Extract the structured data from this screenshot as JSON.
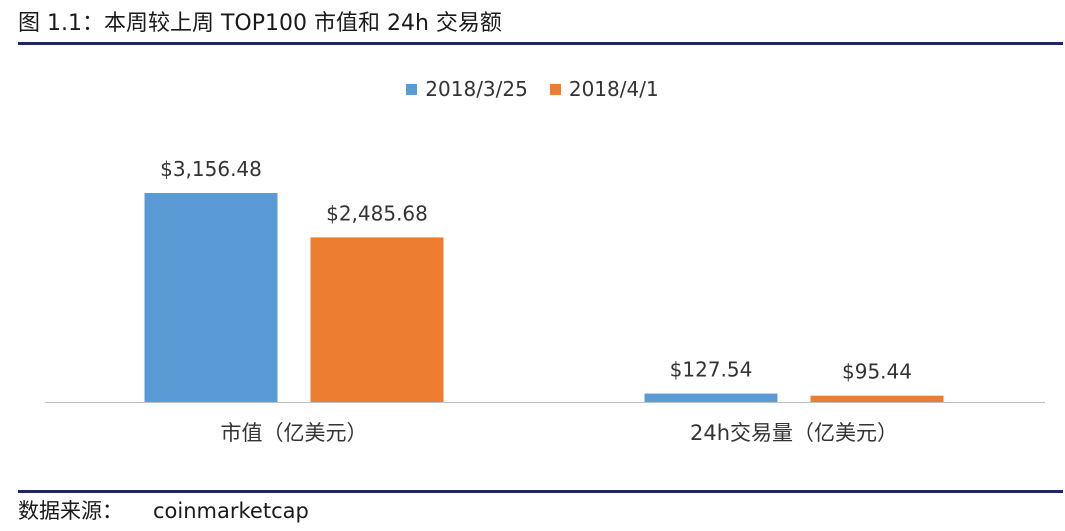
{
  "figure": {
    "title": "图 1.1：本周较上周 TOP100 市值和 24h 交易额",
    "source_label": "数据来源：",
    "source_value": "coinmarketcap"
  },
  "colors": {
    "series_1": "#5b9bd5",
    "series_2": "#ed7d31",
    "rule": "#1f2a5c",
    "axis": "#bfbfbf"
  },
  "chart_data": {
    "type": "bar",
    "categories": [
      "市值（亿美元）",
      "24h交易量（亿美元）"
    ],
    "series": [
      {
        "name": "2018/3/25",
        "values": [
          3156.48,
          127.54
        ],
        "labels": [
          "$3,156.48",
          "$127.54"
        ]
      },
      {
        "name": "2018/4/1",
        "values": [
          2485.68,
          95.44
        ],
        "labels": [
          "$2,485.68",
          "$95.44"
        ]
      }
    ],
    "ylim": [
      0,
      3156.48
    ],
    "grid": false,
    "legend": "top-center"
  }
}
